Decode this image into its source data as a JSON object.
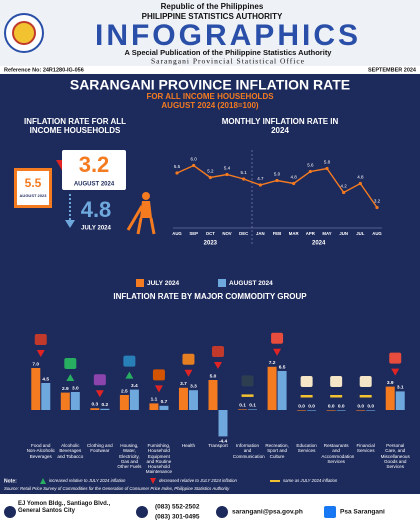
{
  "header": {
    "republic": "Republic of the Philippines",
    "agency": "PHILIPPINE STATISTICS AUTHORITY",
    "title": "INFOGRAPHICS",
    "subtitle": "A Special Publication of the Philippine Statistics Authority",
    "office": "Sarangani Provincial Statistical Office",
    "reference": "Reference No: 24R1280-IG-056",
    "date": "SEPTEMBER 2024"
  },
  "title": "SARANGANI PROVINCE INFLATION RATE",
  "subtitle": "FOR ALL INCOME HOUSEHOLDS",
  "subtitle2": "AUGUST 2024 (2018=100)",
  "summary": {
    "title": "INFLATION RATE FOR ALL INCOME HOUSEHOLDS",
    "previous_year": {
      "value": "5.5",
      "label": "AUGUST 2023"
    },
    "current": {
      "value": "3.2",
      "label": "AUGUST 2024"
    },
    "previous_month": {
      "value": "4.8",
      "label": "JULY 2024"
    }
  },
  "chart_data": [
    {
      "type": "line",
      "title": "MONTHLY INFLATION RATE IN 2024",
      "categories": [
        "AUG",
        "SEP",
        "OCT",
        "NOV",
        "DEC",
        "JAN",
        "FEB",
        "MAR",
        "APR",
        "MAY",
        "JUN",
        "JUL",
        "AUG"
      ],
      "year_labels": [
        "2023",
        "2024"
      ],
      "values": [
        5.5,
        6.0,
        5.2,
        5.4,
        5.1,
        4.7,
        5.0,
        4.8,
        5.6,
        5.8,
        4.2,
        4.8,
        3.2
      ],
      "value_labels": [
        "5.5",
        "6.0",
        "5.2",
        "5.4",
        "5.1",
        "4.7",
        "5.0",
        "4.8",
        "5.6",
        "5.8",
        "4.2",
        "4.8",
        "3.2"
      ],
      "color": "#f47b20",
      "ylim": [
        2.5,
        6.5
      ]
    },
    {
      "type": "bar",
      "title": "INFLATION RATE BY MAJOR COMMODITY GROUP",
      "categories": [
        "Food and Non-Alcoholic Beverages",
        "Alcoholic Beverages and Tobacco",
        "Clothing and Footwear",
        "Housing, Water, Electricity, Gas and Other Fuels",
        "Furnishing, Household Equipment and Routine Household Maintenance",
        "Health",
        "Transport",
        "Information and Communication",
        "Recreation, Sport and Culture",
        "Education Services",
        "Restaurants and Accommodation Services",
        "Financial Services",
        "Personal Care, and Miscellaneous Goods and Services"
      ],
      "series": [
        {
          "name": "JULY 2024",
          "color": "#f47b20",
          "values": [
            7.0,
            2.9,
            0.3,
            2.5,
            1.1,
            3.7,
            5.0,
            0.1,
            7.2,
            0.0,
            0.0,
            0.0,
            3.9
          ],
          "value_labels": [
            "7.0",
            "2.9",
            "0.3",
            "2.5",
            "1.1",
            "3.7",
            "5.0",
            "0.1",
            "7.2",
            "0.0",
            "0.0",
            "0.0",
            "3.9"
          ]
        },
        {
          "name": "AUGUST 2024",
          "color": "#6fa8dc",
          "values": [
            4.5,
            3.0,
            0.2,
            3.4,
            0.7,
            3.3,
            -4.4,
            0.1,
            6.5,
            0.0,
            0.0,
            0.0,
            3.1
          ],
          "value_labels": [
            "4.5",
            "3.0",
            "0.2",
            "3.4",
            "0.7",
            "3.3",
            "-4.4",
            "0.1",
            "6.5",
            "0.0",
            "0.0",
            "0.0",
            "3.1"
          ]
        }
      ],
      "ylim": [
        -5,
        8
      ]
    }
  ],
  "footer": {
    "note": "Note:",
    "increased": "increased relative to JULY 2024 inflation",
    "decreased": "decreased relative to JULY 2024 inflation",
    "same": "same as JULY 2024 inflation",
    "source": "Source: Retail Price Survey of Commodities for the Generation of Consumer Price Index, Philippine Statistics Authority",
    "address": "EJ Yomon Bldg., Santiago Blvd., General Santos City",
    "phone1": "(083) 552-2502",
    "phone2": "(083) 301-0495",
    "email": "sarangani@psa.gov.ph",
    "facebook": "Psa Sarangani"
  }
}
